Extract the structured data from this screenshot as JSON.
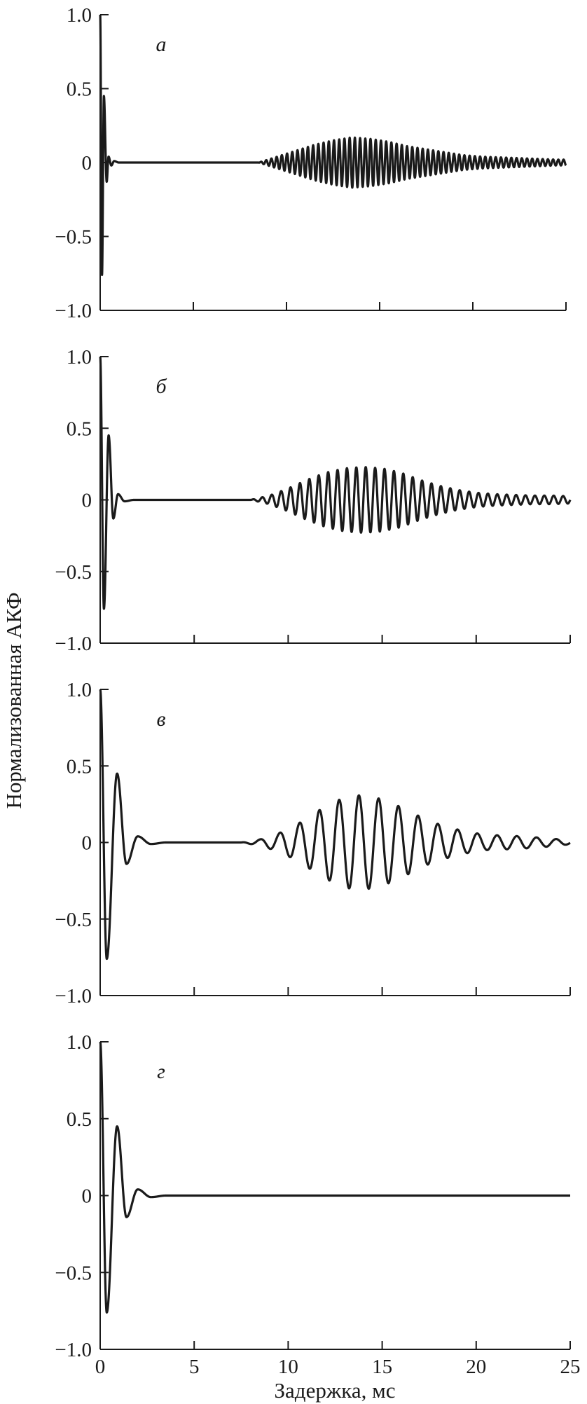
{
  "figure": {
    "ylabel": "Нормализованная АКФ",
    "xlabel": "Задержка, мс"
  },
  "chart_data": [
    {
      "type": "line",
      "panel_label": "а",
      "xlim": [
        0,
        25
      ],
      "ylim": [
        -1.0,
        1.0
      ],
      "x_ticks": [
        "0",
        "5",
        "10",
        "15",
        "20",
        "25"
      ],
      "x_tick_labels_shown": false,
      "y_ticks": [
        "1.0",
        "0.5",
        "0",
        "−0.5",
        "−1.0"
      ],
      "y_tick_values": [
        1.0,
        0.5,
        0,
        -0.5,
        -1.0
      ],
      "series": [
        {
          "envelope": {
            "x": [
              1.0,
              8.5,
              9.5,
              10.5,
              11.5,
              12.5,
              13.5,
              14.5,
              15.5,
              16.5,
              17.5,
              18.5,
              19.5,
              20.5,
              21.5,
              22.5,
              23.5,
              24.5,
              25.0
            ],
            "amp": [
              0.0,
              0.0,
              0.04,
              0.08,
              0.12,
              0.15,
              0.17,
              0.16,
              0.14,
              0.11,
              0.09,
              0.07,
              0.05,
              0.04,
              0.035,
              0.03,
              0.025,
              0.02,
              0.02
            ]
          },
          "oscillation_period_ms": 0.28,
          "initial_peaks": {
            "x": [
              0,
              0.1,
              0.2,
              0.35,
              0.45,
              0.6,
              0.75,
              1.0
            ],
            "y": [
              1.0,
              -0.76,
              0.45,
              -0.13,
              0.04,
              -0.02,
              0.01,
              0
            ]
          }
        }
      ]
    },
    {
      "type": "line",
      "panel_label": "б",
      "xlim": [
        0,
        25
      ],
      "ylim": [
        -1.0,
        1.0
      ],
      "x_ticks": [
        "0",
        "5",
        "10",
        "15",
        "20",
        "25"
      ],
      "x_tick_labels_shown": false,
      "y_ticks": [
        "1.0",
        "0.5",
        "0",
        "−0.5",
        "−1.0"
      ],
      "y_tick_values": [
        1.0,
        0.5,
        0,
        -0.5,
        -1.0
      ],
      "series": [
        {
          "envelope": {
            "x": [
              1.5,
              8.0,
              9.0,
              10.0,
              11.0,
              12.0,
              13.0,
              14.0,
              15.0,
              16.0,
              17.0,
              18.0,
              19.0,
              20.0,
              21.0,
              22.0,
              23.0,
              24.0,
              25.0
            ],
            "amp": [
              0.0,
              0.0,
              0.03,
              0.08,
              0.14,
              0.19,
              0.22,
              0.23,
              0.22,
              0.19,
              0.14,
              0.1,
              0.07,
              0.05,
              0.04,
              0.035,
              0.03,
              0.03,
              0.025
            ]
          },
          "oscillation_period_ms": 0.5,
          "initial_peaks": {
            "x": [
              0,
              0.2,
              0.45,
              0.7,
              0.95,
              1.3,
              1.8
            ],
            "y": [
              1.0,
              -0.76,
              0.45,
              -0.13,
              0.04,
              -0.01,
              0
            ]
          }
        }
      ]
    },
    {
      "type": "line",
      "panel_label": "в",
      "xlim": [
        0,
        25
      ],
      "ylim": [
        -1.0,
        1.0
      ],
      "x_ticks": [
        "0",
        "5",
        "10",
        "15",
        "20",
        "25"
      ],
      "x_tick_labels_shown": false,
      "y_ticks": [
        "1.0",
        "0.5",
        "0",
        "−0.5",
        "−1.0"
      ],
      "y_tick_values": [
        1.0,
        0.5,
        0,
        -0.5,
        -1.0
      ],
      "series": [
        {
          "envelope": {
            "x": [
              3.0,
              7.5,
              8.5,
              9.5,
              10.5,
              11.5,
              12.5,
              13.5,
              14.5,
              15.5,
              16.5,
              17.5,
              18.5,
              19.5,
              20.5,
              21.5,
              22.5,
              23.5,
              24.5,
              25.0
            ],
            "amp": [
              0.0,
              0.0,
              0.02,
              0.06,
              0.12,
              0.2,
              0.27,
              0.31,
              0.3,
              0.26,
              0.2,
              0.14,
              0.1,
              0.07,
              0.05,
              0.045,
              0.04,
              0.03,
              0.02,
              0.01
            ]
          },
          "oscillation_period_ms": 1.05,
          "initial_peaks": {
            "x": [
              0,
              0.35,
              0.9,
              1.4,
              2.0,
              2.7,
              3.5
            ],
            "y": [
              1.0,
              -0.76,
              0.45,
              -0.14,
              0.04,
              -0.01,
              0
            ]
          }
        }
      ]
    },
    {
      "type": "line",
      "panel_label": "г",
      "xlim": [
        0,
        25
      ],
      "ylim": [
        -1.0,
        1.0
      ],
      "x_ticks": [
        "0",
        "5",
        "10",
        "15",
        "20",
        "25"
      ],
      "x_tick_labels_shown": true,
      "y_ticks": [
        "1.0",
        "0.5",
        "0",
        "−0.5",
        "−1.0"
      ],
      "y_tick_values": [
        1.0,
        0.5,
        0,
        -0.5,
        -1.0
      ],
      "series": [
        {
          "envelope": {
            "x": [
              3.0,
              25.0
            ],
            "amp": [
              0.0,
              0.0
            ]
          },
          "oscillation_period_ms": 1.0,
          "initial_peaks": {
            "x": [
              0,
              0.35,
              0.9,
              1.4,
              2.0,
              2.7,
              3.5
            ],
            "y": [
              1.0,
              -0.76,
              0.45,
              -0.14,
              0.04,
              -0.01,
              0
            ]
          }
        }
      ]
    }
  ]
}
